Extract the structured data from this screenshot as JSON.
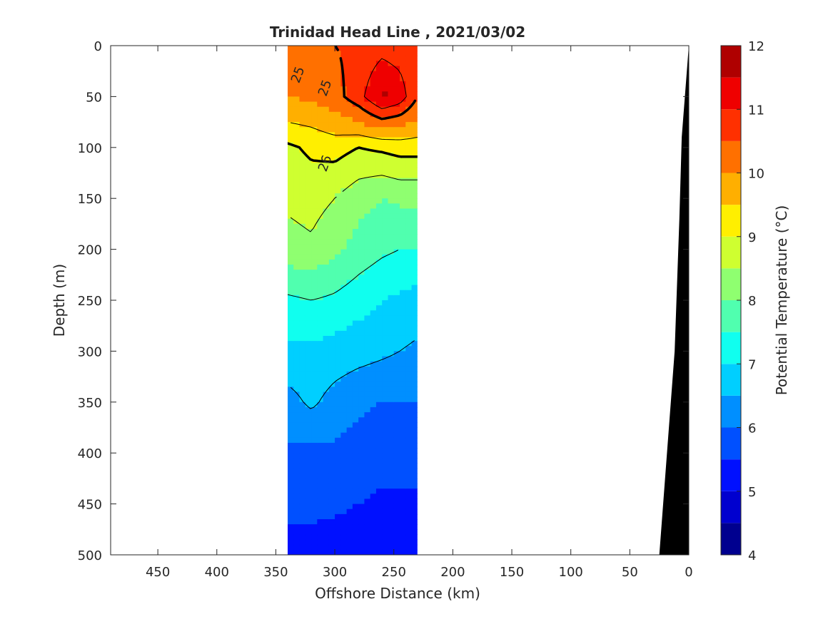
{
  "chart_data": {
    "type": "heatmap",
    "title": "Trinidad Head Line , 2021/03/02",
    "xlabel": "Offshore Distance (km)",
    "ylabel": "Depth (m)",
    "colorbar_label": "Potential Temperature (°C)",
    "xlim": [
      490,
      0
    ],
    "ylim": [
      0,
      500
    ],
    "x_reversed": true,
    "y_reversed": true,
    "x_ticks": [
      "450",
      "400",
      "350",
      "300",
      "250",
      "200",
      "150",
      "100",
      "50",
      "0"
    ],
    "y_ticks": [
      "0",
      "50",
      "100",
      "150",
      "200",
      "250",
      "300",
      "350",
      "400",
      "450",
      "500"
    ],
    "colorbar_ticks": [
      "4",
      "5",
      "6",
      "7",
      "8",
      "9",
      "10",
      "11",
      "12"
    ],
    "color_levels": [
      4,
      4.5,
      5,
      5.5,
      6,
      6.5,
      7,
      7.5,
      8,
      8.5,
      9,
      9.5,
      10,
      10.5,
      11,
      11.5,
      12
    ],
    "level_colors": [
      "#00008f",
      "#0000cf",
      "#0010ff",
      "#0050ff",
      "#008fff",
      "#00cfff",
      "#10ffef",
      "#50ffaf",
      "#8fff70",
      "#cfff30",
      "#ffef00",
      "#ffaf00",
      "#ff7000",
      "#ff3000",
      "#ef0000",
      "#af0000"
    ],
    "data_extent_km": [
      340,
      230
    ],
    "temperature_profiles": [
      {
        "distance_km": 340,
        "depth_m": [
          0,
          50,
          80,
          100,
          150,
          200,
          250,
          300,
          350,
          400,
          450,
          490
        ],
        "temp_c": [
          10.2,
          10.0,
          9.4,
          8.9,
          8.6,
          8.3,
          7.4,
          6.9,
          6.3,
          5.9,
          5.6,
          5.4
        ]
      },
      {
        "distance_km": 320,
        "depth_m": [
          0,
          50,
          80,
          100,
          150,
          200,
          250,
          300,
          350,
          400,
          450,
          490
        ],
        "temp_c": [
          10.3,
          10.1,
          9.5,
          9.1,
          8.7,
          8.4,
          7.5,
          6.9,
          6.6,
          5.9,
          5.6,
          5.4
        ]
      },
      {
        "distance_km": 300,
        "depth_m": [
          0,
          50,
          80,
          100,
          150,
          200,
          250,
          300,
          350,
          400,
          450,
          490
        ],
        "temp_c": [
          10.5,
          10.3,
          9.7,
          9.2,
          8.5,
          8.1,
          7.4,
          6.8,
          6.3,
          5.9,
          5.6,
          5.3
        ]
      },
      {
        "distance_km": 280,
        "depth_m": [
          0,
          50,
          80,
          100,
          150,
          200,
          250,
          300,
          350,
          400,
          450,
          490
        ],
        "temp_c": [
          10.6,
          10.8,
          9.8,
          9.0,
          8.2,
          7.8,
          7.2,
          6.7,
          6.1,
          5.8,
          5.5,
          5.3
        ]
      },
      {
        "distance_km": 260,
        "depth_m": [
          0,
          50,
          80,
          100,
          150,
          200,
          250,
          300,
          350,
          400,
          450,
          490
        ],
        "temp_c": [
          10.8,
          11.6,
          10.1,
          9.1,
          8.0,
          7.6,
          7.0,
          6.6,
          6.0,
          5.7,
          5.4,
          5.2
        ]
      },
      {
        "distance_km": 245,
        "depth_m": [
          0,
          50,
          80,
          100,
          150,
          200,
          250,
          300,
          350,
          400,
          450,
          490
        ],
        "temp_c": [
          10.7,
          11.3,
          10.0,
          9.2,
          8.1,
          7.5,
          6.9,
          6.5,
          6.0,
          5.7,
          5.4,
          5.1
        ]
      },
      {
        "distance_km": 230,
        "depth_m": [
          0,
          50,
          80,
          100,
          150,
          200,
          250,
          300,
          350,
          400,
          450,
          490
        ],
        "temp_c": [
          10.6,
          10.5,
          9.8,
          9.2,
          8.1,
          7.5,
          6.8,
          6.4,
          6.0,
          5.7,
          5.4,
          5.1
        ]
      }
    ],
    "contour_labels": [
      {
        "text": "25",
        "distance_km": 328,
        "depth_m": 30
      },
      {
        "text": "25",
        "distance_km": 305,
        "depth_m": 43
      },
      {
        "text": "26",
        "distance_km": 305,
        "depth_m": 117
      }
    ],
    "bathymetry": {
      "distance_km": [
        25,
        12,
        8,
        6,
        0
      ],
      "depth_m": [
        500,
        300,
        170,
        90,
        0
      ]
    }
  }
}
